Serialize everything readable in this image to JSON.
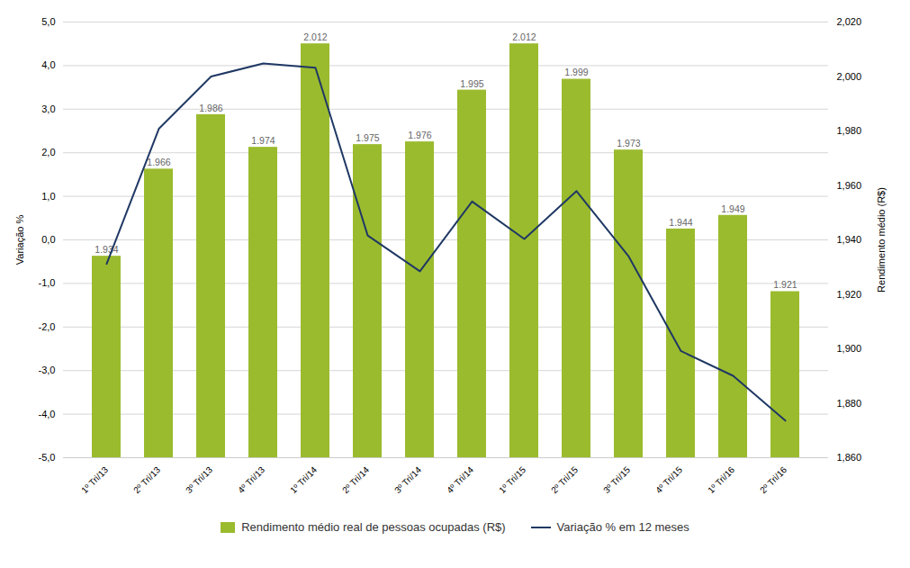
{
  "chart_data": {
    "type": "bar",
    "categories": [
      "1º Tri/13",
      "2º Tri/13",
      "3º Tri/13",
      "4º Tri/13",
      "1º Tri/14",
      "2º Tri/14",
      "3º Tri/14",
      "4º Tri/14",
      "1º Tri/15",
      "2º Tri/15",
      "3º Tri/15",
      "4º Tri/15",
      "1º Tri/16",
      "2º Tri/16"
    ],
    "series": [
      {
        "name": "Rendimento médio real de pessoas ocupadas (R$)",
        "type": "bar",
        "axis": "y2",
        "color": "#9BBB2E",
        "data_labels": true,
        "values": [
          1.934,
          1.966,
          1.986,
          1.974,
          2.012,
          1.975,
          1.976,
          1.995,
          2.012,
          1.999,
          1.973,
          1.944,
          1.949,
          1.921
        ]
      },
      {
        "name": "Variação % em 12 meses",
        "type": "line",
        "color": "#1F3864",
        "values": [
          -0.55,
          2.55,
          3.75,
          4.05,
          3.95,
          0.1,
          -0.72,
          0.88,
          0.02,
          1.12,
          -0.38,
          -2.55,
          -3.12,
          -4.15
        ]
      }
    ],
    "ylabel": "Variação %",
    "y2label": "Rendimento médio (R$)",
    "ylim": [
      -5.0,
      5.0
    ],
    "yticks": [
      {
        "value": -5.0,
        "label": "-5,0"
      },
      {
        "value": -4.0,
        "label": "-4,0"
      },
      {
        "value": -3.0,
        "label": "-3,0"
      },
      {
        "value": -2.0,
        "label": "-2,0"
      },
      {
        "value": -1.0,
        "label": "-1,0"
      },
      {
        "value": 0.0,
        "label": "0,0"
      },
      {
        "value": 1.0,
        "label": "1,0"
      },
      {
        "value": 2.0,
        "label": "2,0"
      },
      {
        "value": 3.0,
        "label": "3,0"
      },
      {
        "value": 4.0,
        "label": "4,0"
      },
      {
        "value": 5.0,
        "label": "5,0"
      }
    ],
    "y2lim": [
      1.86,
      2.02
    ],
    "y2ticks": [
      {
        "value": 1.86,
        "label": "1,860"
      },
      {
        "value": 1.88,
        "label": "1,880"
      },
      {
        "value": 1.9,
        "label": "1,900"
      },
      {
        "value": 1.92,
        "label": "1,920"
      },
      {
        "value": 1.94,
        "label": "1,940"
      },
      {
        "value": 1.96,
        "label": "1,960"
      },
      {
        "value": 1.98,
        "label": "1,980"
      },
      {
        "value": 2.0,
        "label": "2,000"
      },
      {
        "value": 2.02,
        "label": "2,020"
      }
    ],
    "grid": true,
    "legend": "bottom"
  }
}
